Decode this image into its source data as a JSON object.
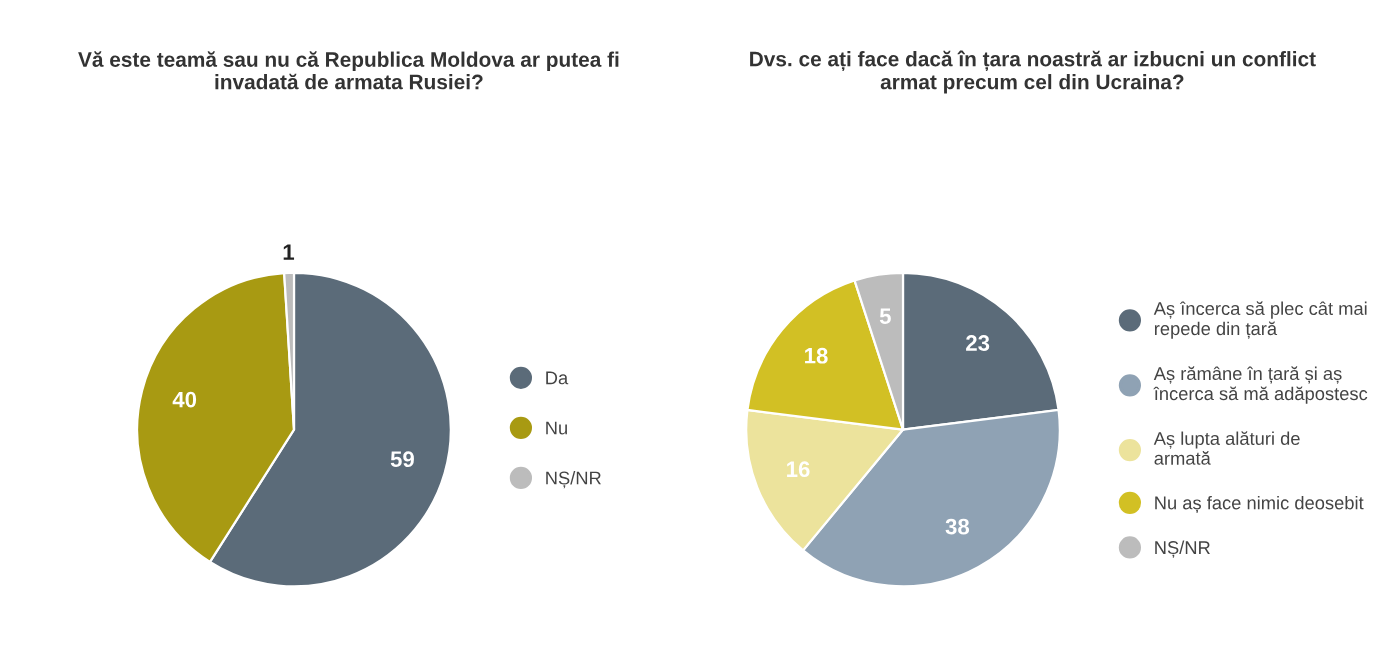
{
  "chart_data": [
    {
      "type": "pie",
      "title": "Vă este teamă sau nu că Republica Moldova ar putea fi\ninvadată de armata Rusiei?",
      "categories": [
        "Da",
        "Nu",
        "NȘ/NR"
      ],
      "values": [
        59,
        40,
        1
      ],
      "colors": [
        "#5b6b79",
        "#a89a12",
        "#bcbcbc"
      ],
      "data_labels": true,
      "legend": "right"
    },
    {
      "type": "pie",
      "title": "Dvs. ce ați face dacă în țara noastră ar izbucni un conflict\narmat precum cel din Ucraina?",
      "categories": [
        "Aș încerca să plec cât mai\nrepede din țară",
        "Aș rămâne în țară și aș\nîncerca să mă adăpostesc",
        "Aș lupta alături de\narmată",
        "Nu aș face nimic deosebit",
        "NȘ/NR"
      ],
      "values": [
        23,
        38,
        16,
        18,
        5
      ],
      "colors": [
        "#5b6b79",
        "#8fa2b4",
        "#ece39c",
        "#d2c024",
        "#bcbcbc"
      ],
      "data_labels": true,
      "legend": "right"
    }
  ]
}
